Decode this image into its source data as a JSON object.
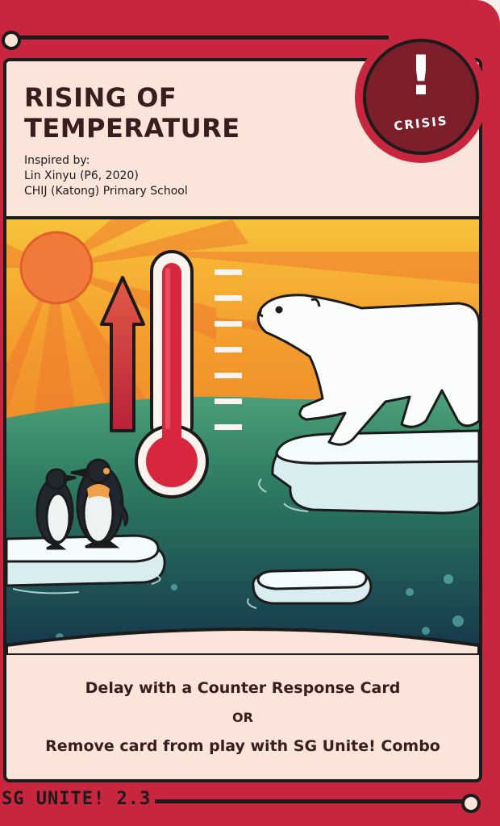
{
  "card": {
    "title_line1": "RISING OF",
    "title_line2": "TEMPERATURE",
    "inspired_label": "Inspired by:",
    "inspired_name": "Lin Xinyu (P6, 2020)",
    "inspired_school": "CHIJ (Katong) Primary School",
    "badge_symbol": "!",
    "badge_label": "CRISIS",
    "footer_line1": "Delay with a Counter Response Card",
    "footer_or": "OR",
    "footer_line2": "Remove card from play with SG Unite! Combo",
    "edition_label": "SG UNITE! 2.3"
  },
  "colors": {
    "card_red": "#c8263f",
    "panel_cream": "#fbe4da",
    "badge_dark": "#7c1f2a",
    "sky_orange": "#f39a2c",
    "sun": "#f07a3a",
    "sea_green": "#3b8f6a",
    "sea_dark": "#16394a",
    "ink": "#1b1b1b"
  },
  "icons": [
    "exclamation-icon",
    "sun-icon",
    "up-arrow-icon",
    "thermometer-icon",
    "polar-bear-icon",
    "penguin-icon",
    "ice-floe-icon"
  ]
}
